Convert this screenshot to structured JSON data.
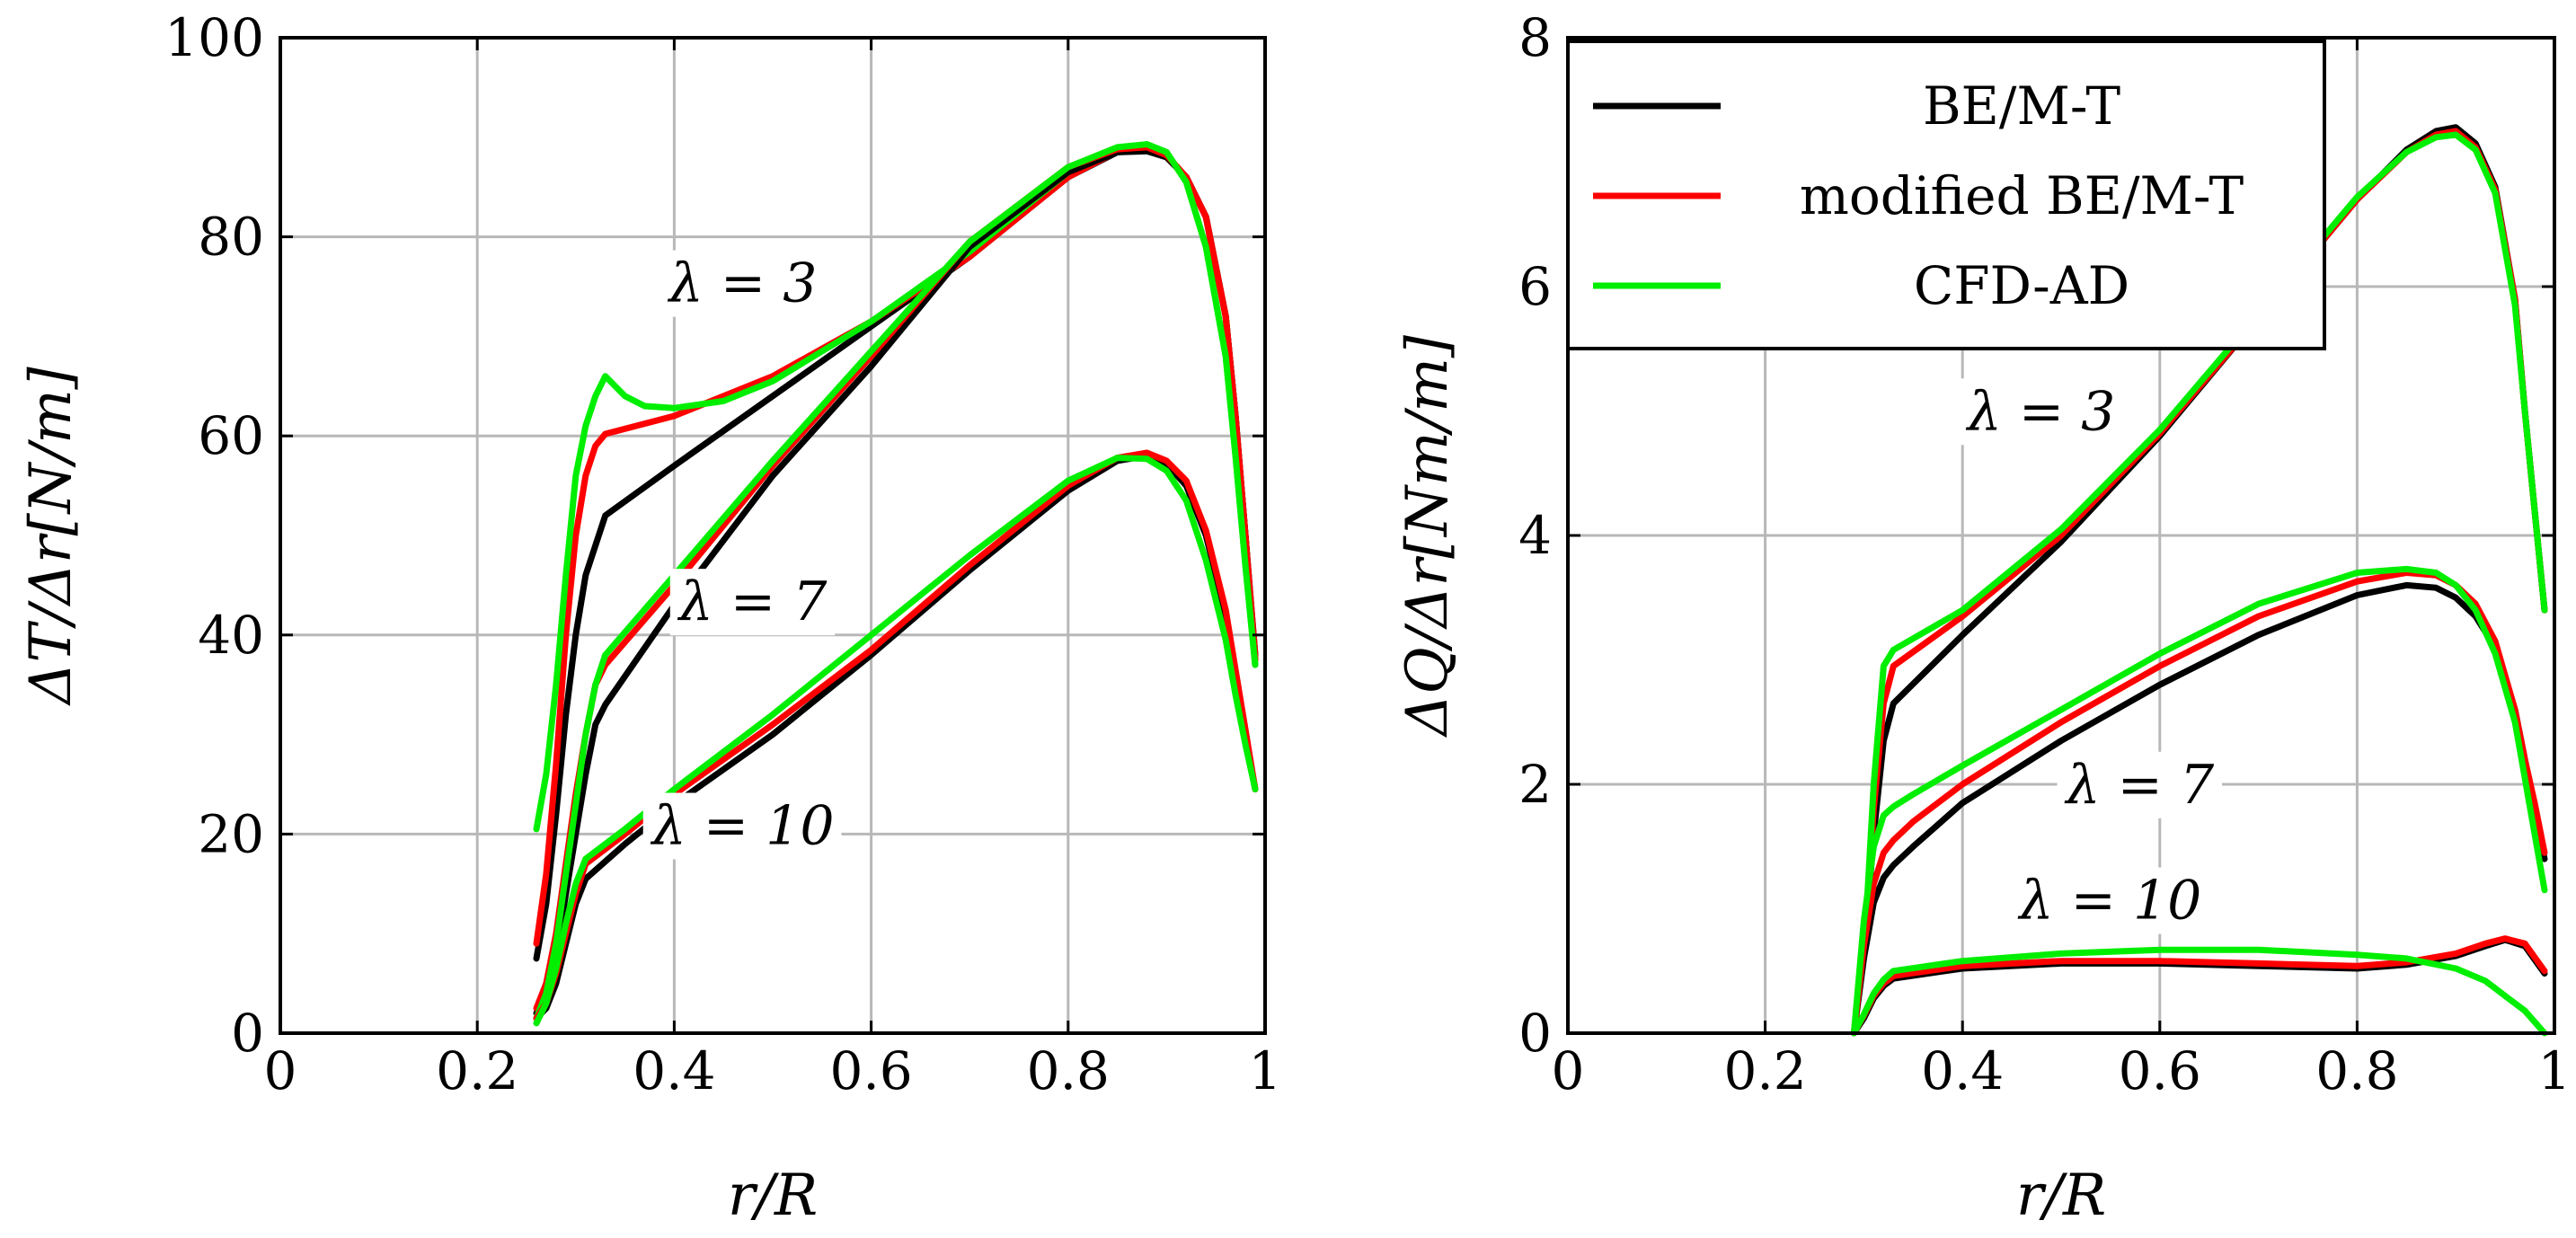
{
  "chart_data": [
    {
      "type": "line",
      "id": "thrust",
      "xlabel": "r/R",
      "ylabel": "ΔT/Δr[N/m]",
      "xlim": [
        0,
        1
      ],
      "ylim": [
        0,
        100
      ],
      "xticks": [
        0,
        0.2,
        0.4,
        0.6,
        0.8,
        1
      ],
      "xtick_labels": [
        "0",
        "0.2",
        "0.4",
        "0.6",
        "0.8",
        "1"
      ],
      "yticks": [
        0,
        20,
        40,
        60,
        80,
        100
      ],
      "ytick_labels": [
        "0",
        "20",
        "40",
        "60",
        "80",
        "100"
      ],
      "grid": true,
      "annotations": [
        {
          "text": "λ = 3",
          "x": 0.47,
          "y": 73.5
        },
        {
          "text": "λ = 7",
          "x": 0.48,
          "y": 41.5
        },
        {
          "text": "λ = 10",
          "x": 0.47,
          "y": 19.0
        }
      ],
      "series": [
        {
          "name": "BE/M-T",
          "group": "λ = 3",
          "color": "#000000",
          "x": [
            0.26,
            0.27,
            0.28,
            0.29,
            0.3,
            0.31,
            0.33,
            0.4,
            0.5,
            0.6,
            0.7,
            0.8,
            0.85,
            0.88,
            0.9,
            0.92,
            0.94,
            0.96,
            0.97,
            0.98,
            0.99
          ],
          "y": [
            7.5,
            13,
            22,
            32,
            40,
            46,
            52,
            57,
            64,
            71,
            78,
            86,
            88.5,
            88.6,
            88,
            86,
            82,
            72,
            62,
            50,
            38
          ]
        },
        {
          "name": "modified BE/M-T",
          "group": "λ = 3",
          "color": "#ff0000",
          "x": [
            0.26,
            0.27,
            0.28,
            0.29,
            0.3,
            0.31,
            0.32,
            0.33,
            0.4,
            0.5,
            0.6,
            0.7,
            0.8,
            0.85,
            0.88,
            0.9,
            0.92,
            0.94,
            0.96,
            0.97,
            0.98,
            0.99
          ],
          "y": [
            9,
            16,
            27,
            40,
            50,
            56,
            59,
            60.2,
            62,
            66,
            71.5,
            78,
            86,
            88.6,
            88.8,
            88,
            86,
            82,
            72,
            62,
            50,
            38
          ]
        },
        {
          "name": "CFD-AD",
          "group": "λ = 3",
          "color": "#00ee00",
          "x": [
            0.26,
            0.27,
            0.28,
            0.29,
            0.3,
            0.31,
            0.32,
            0.33,
            0.35,
            0.37,
            0.4,
            0.45,
            0.5,
            0.6,
            0.7,
            0.8,
            0.85,
            0.88,
            0.9,
            0.92,
            0.94,
            0.96,
            0.97,
            0.98,
            0.99
          ],
          "y": [
            20.5,
            26,
            35,
            46,
            56,
            61,
            64,
            66,
            64,
            63,
            62.8,
            63.5,
            65.5,
            71.5,
            78.5,
            86.5,
            88.8,
            89.3,
            88.5,
            85.5,
            79,
            68,
            58,
            47,
            37
          ]
        },
        {
          "name": "BE/M-T",
          "group": "λ = 7",
          "color": "#000000",
          "x": [
            0.26,
            0.27,
            0.28,
            0.29,
            0.3,
            0.31,
            0.32,
            0.33,
            0.4,
            0.5,
            0.6,
            0.7,
            0.8,
            0.85,
            0.88,
            0.9,
            0.92,
            0.94,
            0.96,
            0.97,
            0.98,
            0.99
          ],
          "y": [
            2,
            4,
            8,
            14,
            20,
            26,
            31,
            33,
            43,
            56,
            67,
            79,
            86.5,
            88.5,
            88.8,
            88,
            86,
            82,
            72,
            62,
            50,
            37.5
          ]
        },
        {
          "name": "modified BE/M-T",
          "group": "λ = 7",
          "color": "#ff0000",
          "x": [
            0.26,
            0.27,
            0.28,
            0.29,
            0.3,
            0.31,
            0.32,
            0.33,
            0.4,
            0.5,
            0.6,
            0.7,
            0.8,
            0.85,
            0.88,
            0.9,
            0.92,
            0.94,
            0.96,
            0.97,
            0.98,
            0.99
          ],
          "y": [
            2.5,
            5,
            10,
            17,
            24,
            30,
            35,
            37,
            45,
            57,
            68,
            79.5,
            87,
            88.8,
            89,
            88.2,
            86,
            82,
            72,
            62,
            50,
            37.5
          ]
        },
        {
          "name": "CFD-AD",
          "group": "λ = 7",
          "color": "#00ee00",
          "x": [
            0.26,
            0.27,
            0.28,
            0.29,
            0.3,
            0.31,
            0.32,
            0.33,
            0.4,
            0.5,
            0.6,
            0.7,
            0.8,
            0.85,
            0.88,
            0.9,
            0.92,
            0.94,
            0.96,
            0.97,
            0.98,
            0.99
          ],
          "y": [
            1.5,
            4,
            9,
            16,
            23,
            30,
            35,
            38,
            46,
            57.5,
            68.5,
            79.5,
            87,
            89,
            89.3,
            88.5,
            85.5,
            79,
            68,
            58,
            47,
            37
          ]
        },
        {
          "name": "BE/M-T",
          "group": "λ = 10",
          "color": "#000000",
          "x": [
            0.26,
            0.27,
            0.28,
            0.29,
            0.3,
            0.31,
            0.35,
            0.4,
            0.5,
            0.6,
            0.7,
            0.8,
            0.85,
            0.88,
            0.9,
            0.92,
            0.94,
            0.96,
            0.97,
            0.98,
            0.99
          ],
          "y": [
            1.5,
            2.5,
            5,
            9,
            13,
            15.5,
            19,
            23,
            30,
            38,
            46.5,
            54.5,
            57.5,
            58,
            57.2,
            55,
            50,
            42,
            36,
            30,
            24.5
          ]
        },
        {
          "name": "modified BE/M-T",
          "group": "λ = 10",
          "color": "#ff0000",
          "x": [
            0.26,
            0.27,
            0.28,
            0.29,
            0.3,
            0.31,
            0.35,
            0.4,
            0.5,
            0.6,
            0.7,
            0.8,
            0.85,
            0.88,
            0.9,
            0.92,
            0.94,
            0.96,
            0.97,
            0.98,
            0.99
          ],
          "y": [
            1.5,
            3,
            6,
            10,
            14,
            17,
            20,
            24,
            31,
            38.5,
            47,
            55,
            57.8,
            58.3,
            57.5,
            55.5,
            50.5,
            42.5,
            36.5,
            30.5,
            24.5
          ]
        },
        {
          "name": "CFD-AD",
          "group": "λ = 10",
          "color": "#00ee00",
          "x": [
            0.26,
            0.27,
            0.28,
            0.29,
            0.3,
            0.31,
            0.35,
            0.4,
            0.5,
            0.6,
            0.7,
            0.8,
            0.85,
            0.88,
            0.9,
            0.92,
            0.94,
            0.96,
            0.97,
            0.98,
            0.99
          ],
          "y": [
            1,
            3,
            6.5,
            11,
            15,
            17.5,
            20.5,
            24.5,
            32,
            40,
            48,
            55.5,
            57.8,
            57.7,
            56.5,
            53.5,
            47.5,
            39.5,
            34,
            29,
            24.5
          ]
        }
      ]
    },
    {
      "type": "line",
      "id": "torque",
      "xlabel": "r/R",
      "ylabel": "ΔQ/Δr[Nm/m]",
      "xlim": [
        0,
        1
      ],
      "ylim": [
        0,
        8
      ],
      "xticks": [
        0,
        0.2,
        0.4,
        0.6,
        0.8,
        1
      ],
      "xtick_labels": [
        "0",
        "0.2",
        "0.4",
        "0.6",
        "0.8",
        "1"
      ],
      "yticks": [
        0,
        2,
        4,
        6,
        8
      ],
      "ytick_labels": [
        "0",
        "2",
        "4",
        "6",
        "8"
      ],
      "grid": true,
      "legend": {
        "position": "top-left",
        "entries": [
          {
            "label": "BE/M-T",
            "color": "#000000"
          },
          {
            "label": "modified BE/M-T",
            "color": "#ff0000"
          },
          {
            "label": "CFD-AD",
            "color": "#00ee00"
          }
        ]
      },
      "annotations": [
        {
          "text": "λ = 3",
          "x": 0.48,
          "y": 4.85
        },
        {
          "text": "λ = 7",
          "x": 0.58,
          "y": 1.85
        },
        {
          "text": "λ = 10",
          "x": 0.55,
          "y": 0.92
        }
      ],
      "series": [
        {
          "name": "BE/M-T",
          "group": "λ = 3",
          "color": "#000000",
          "x": [
            0.3,
            0.31,
            0.32,
            0.33,
            0.4,
            0.5,
            0.6,
            0.7,
            0.8,
            0.85,
            0.88,
            0.9,
            0.92,
            0.94,
            0.96,
            0.97,
            0.98,
            0.99
          ],
          "y": [
            0.6,
            1.6,
            2.35,
            2.65,
            3.2,
            3.95,
            4.8,
            5.75,
            6.7,
            7.1,
            7.25,
            7.28,
            7.15,
            6.8,
            5.9,
            5.0,
            4.2,
            3.4
          ]
        },
        {
          "name": "modified BE/M-T",
          "group": "λ = 3",
          "color": "#ff0000",
          "x": [
            0.3,
            0.31,
            0.32,
            0.33,
            0.4,
            0.5,
            0.6,
            0.7,
            0.8,
            0.85,
            0.88,
            0.9,
            0.92,
            0.94,
            0.96,
            0.97,
            0.98,
            0.99
          ],
          "y": [
            0.6,
            1.8,
            2.65,
            2.95,
            3.35,
            4.0,
            4.82,
            5.75,
            6.7,
            7.08,
            7.22,
            7.25,
            7.12,
            6.78,
            5.9,
            5.0,
            4.2,
            3.4
          ]
        },
        {
          "name": "CFD-AD",
          "group": "λ = 3",
          "color": "#00ee00",
          "x": [
            0.3,
            0.31,
            0.32,
            0.33,
            0.4,
            0.5,
            0.6,
            0.7,
            0.8,
            0.85,
            0.88,
            0.9,
            0.92,
            0.94,
            0.96,
            0.97,
            0.98,
            0.99
          ],
          "y": [
            0.6,
            2.0,
            2.95,
            3.08,
            3.4,
            4.05,
            4.85,
            5.78,
            6.72,
            7.08,
            7.2,
            7.22,
            7.1,
            6.75,
            5.85,
            5.0,
            4.2,
            3.4
          ]
        },
        {
          "name": "BE/M-T",
          "group": "λ = 7",
          "color": "#000000",
          "x": [
            0.29,
            0.3,
            0.31,
            0.32,
            0.33,
            0.35,
            0.4,
            0.5,
            0.6,
            0.7,
            0.8,
            0.85,
            0.88,
            0.9,
            0.92,
            0.94,
            0.96,
            0.97,
            0.98,
            0.99
          ],
          "y": [
            0.0,
            0.6,
            1.05,
            1.25,
            1.35,
            1.5,
            1.85,
            2.35,
            2.8,
            3.2,
            3.52,
            3.6,
            3.58,
            3.5,
            3.35,
            3.1,
            2.6,
            2.2,
            1.8,
            1.4
          ]
        },
        {
          "name": "modified BE/M-T",
          "group": "λ = 7",
          "color": "#ff0000",
          "x": [
            0.29,
            0.3,
            0.31,
            0.32,
            0.33,
            0.35,
            0.4,
            0.5,
            0.6,
            0.7,
            0.8,
            0.85,
            0.88,
            0.9,
            0.92,
            0.94,
            0.96,
            0.97,
            0.98,
            0.99
          ],
          "y": [
            0.0,
            0.7,
            1.2,
            1.45,
            1.55,
            1.7,
            2.0,
            2.5,
            2.95,
            3.35,
            3.63,
            3.7,
            3.68,
            3.6,
            3.45,
            3.15,
            2.6,
            2.2,
            1.85,
            1.45
          ]
        },
        {
          "name": "CFD-AD",
          "group": "λ = 7",
          "color": "#00ee00",
          "x": [
            0.29,
            0.3,
            0.31,
            0.32,
            0.33,
            0.35,
            0.4,
            0.5,
            0.6,
            0.7,
            0.8,
            0.85,
            0.88,
            0.9,
            0.92,
            0.94,
            0.96,
            0.97,
            0.98,
            0.99
          ],
          "y": [
            0.0,
            0.9,
            1.5,
            1.75,
            1.82,
            1.92,
            2.15,
            2.6,
            3.05,
            3.45,
            3.7,
            3.73,
            3.7,
            3.6,
            3.4,
            3.05,
            2.5,
            2.05,
            1.6,
            1.15
          ]
        },
        {
          "name": "BE/M-T",
          "group": "λ = 10",
          "color": "#000000",
          "x": [
            0.29,
            0.3,
            0.31,
            0.32,
            0.33,
            0.4,
            0.5,
            0.6,
            0.7,
            0.8,
            0.85,
            0.9,
            0.93,
            0.95,
            0.97,
            0.99
          ],
          "y": [
            0.0,
            0.12,
            0.28,
            0.38,
            0.44,
            0.52,
            0.56,
            0.56,
            0.54,
            0.52,
            0.55,
            0.62,
            0.7,
            0.75,
            0.7,
            0.48
          ]
        },
        {
          "name": "modified BE/M-T",
          "group": "λ = 10",
          "color": "#ff0000",
          "x": [
            0.29,
            0.3,
            0.31,
            0.32,
            0.33,
            0.4,
            0.5,
            0.6,
            0.7,
            0.8,
            0.85,
            0.9,
            0.93,
            0.95,
            0.97,
            0.99
          ],
          "y": [
            0.0,
            0.14,
            0.3,
            0.4,
            0.46,
            0.54,
            0.58,
            0.58,
            0.56,
            0.54,
            0.57,
            0.64,
            0.72,
            0.76,
            0.72,
            0.5
          ]
        },
        {
          "name": "CFD-AD",
          "group": "λ = 10",
          "color": "#00ee00",
          "x": [
            0.29,
            0.3,
            0.31,
            0.32,
            0.33,
            0.4,
            0.5,
            0.6,
            0.7,
            0.8,
            0.85,
            0.9,
            0.93,
            0.95,
            0.97,
            0.99
          ],
          "y": [
            0.0,
            0.15,
            0.32,
            0.43,
            0.5,
            0.58,
            0.64,
            0.67,
            0.67,
            0.63,
            0.6,
            0.52,
            0.42,
            0.3,
            0.18,
            0.0
          ]
        }
      ]
    }
  ]
}
